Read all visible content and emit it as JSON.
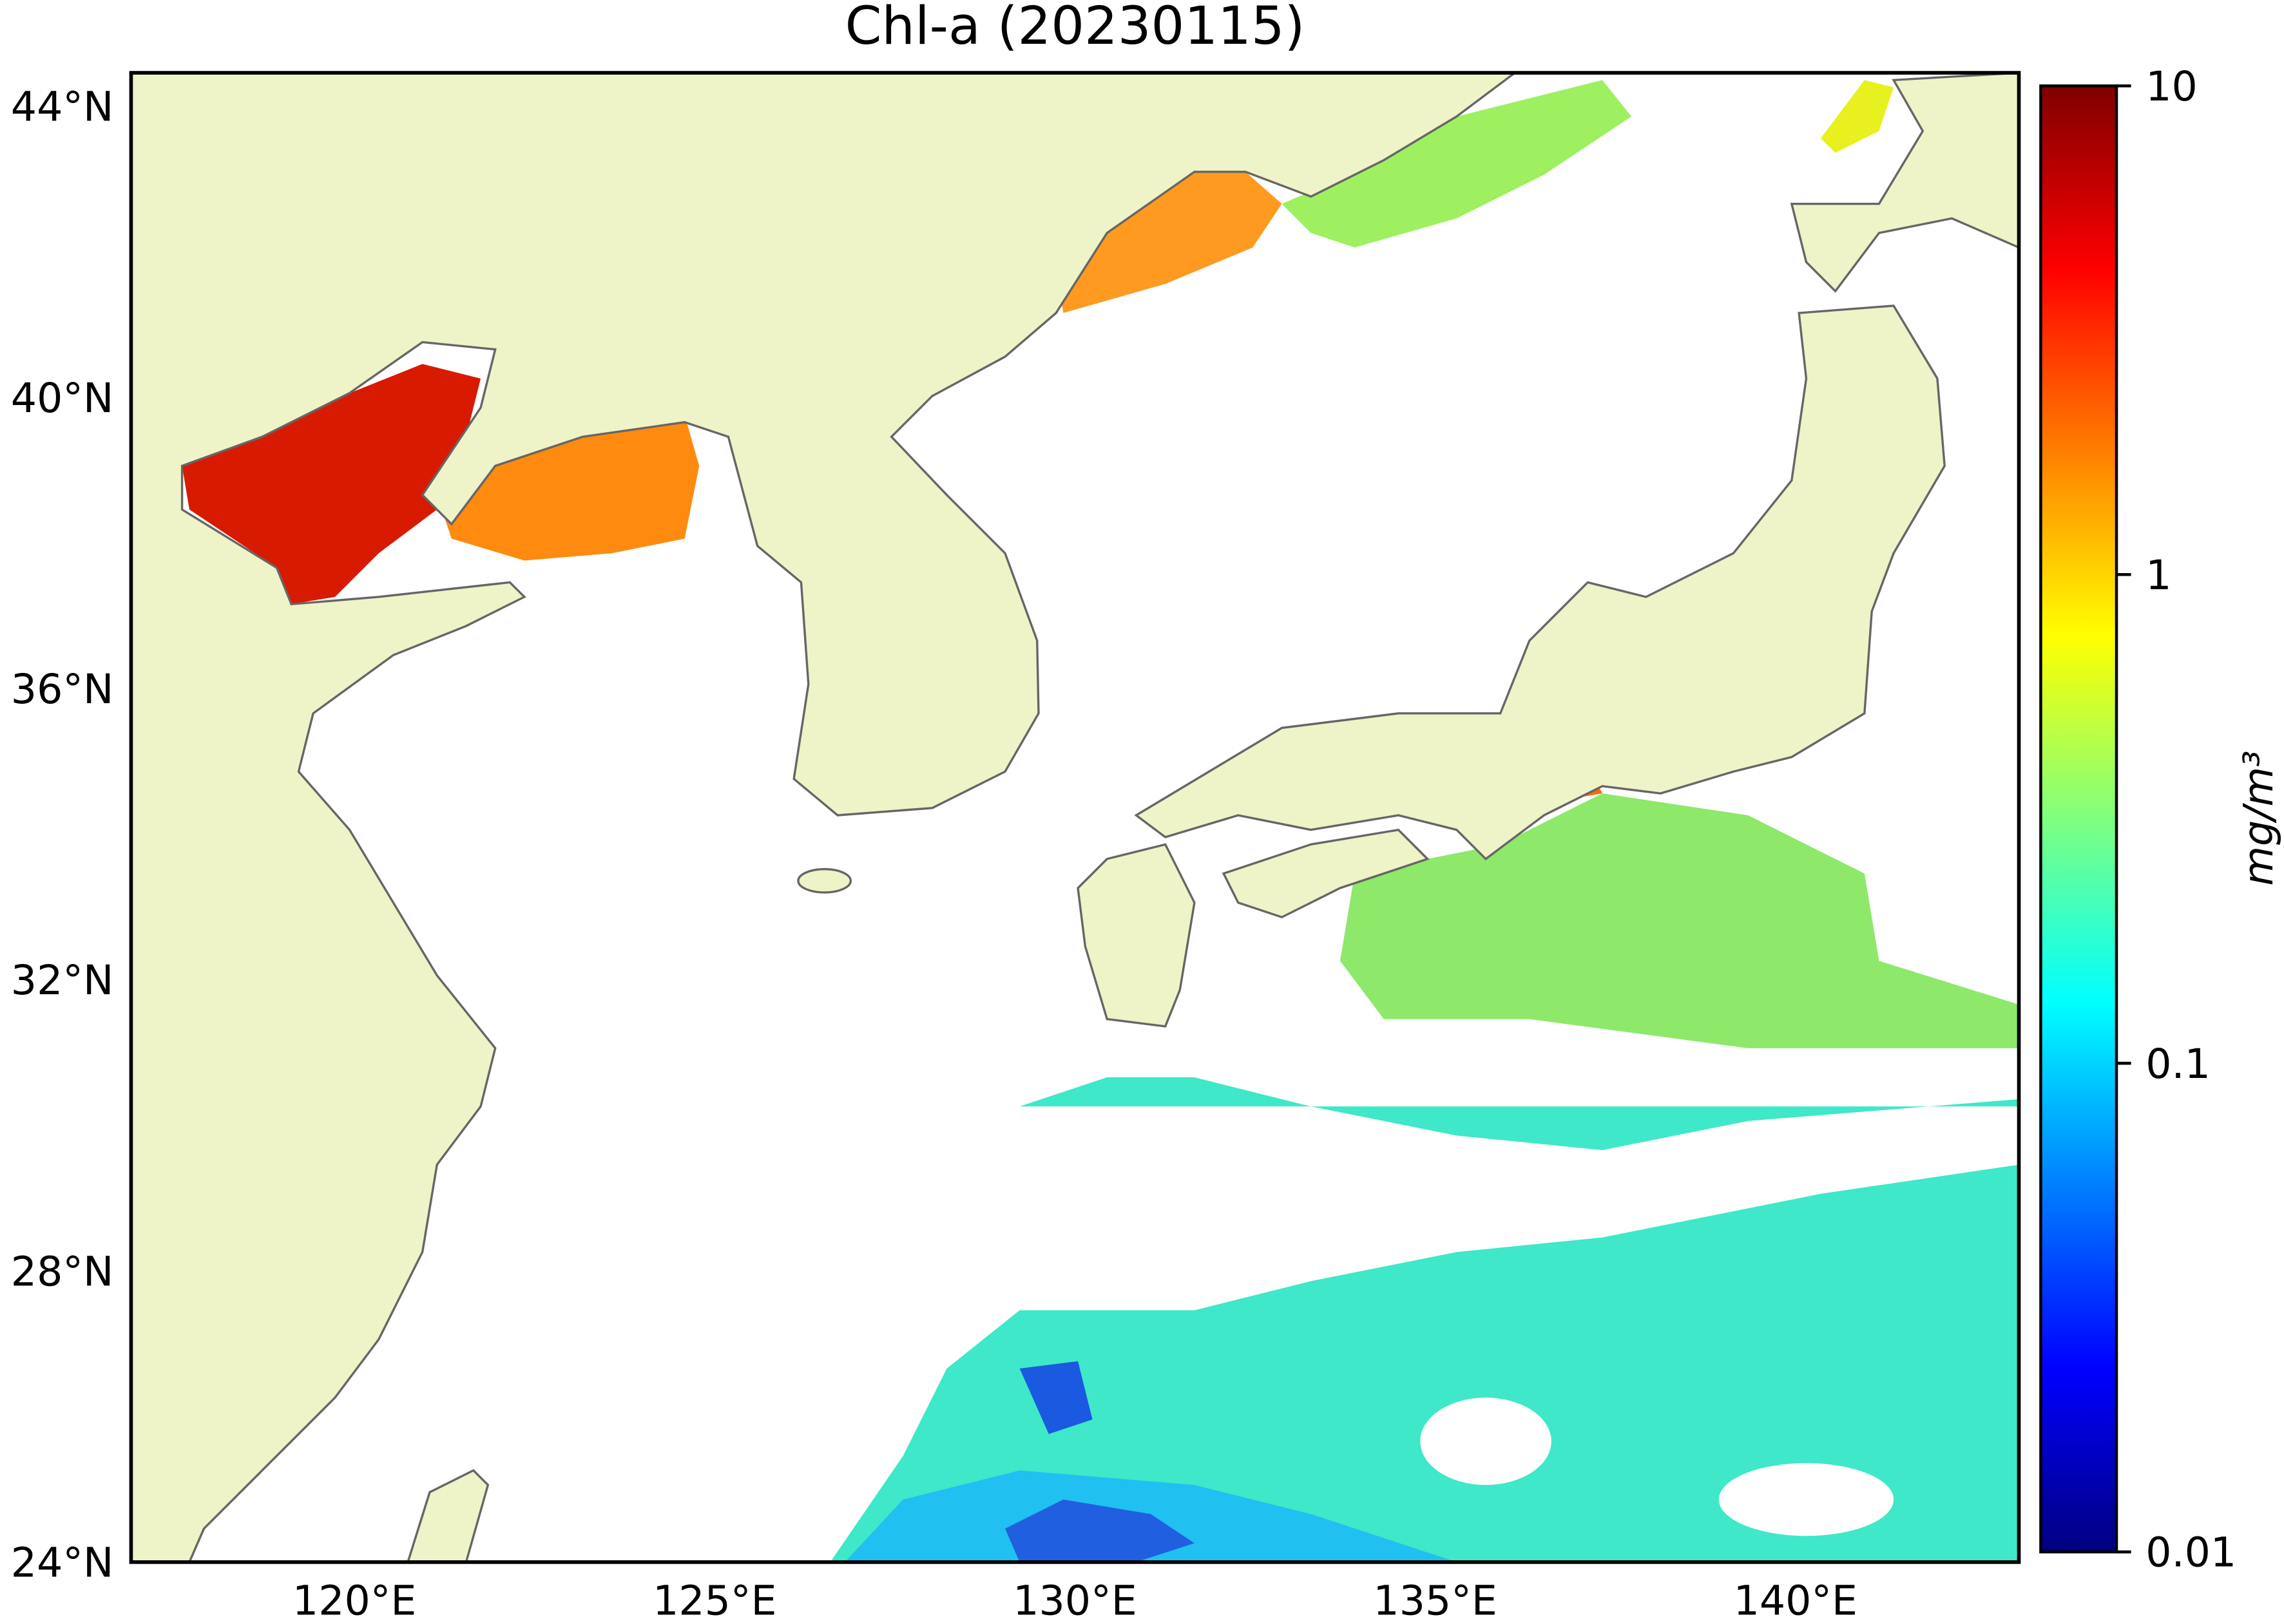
{
  "chart_data": {
    "type": "map",
    "title": "Chl-a (20230115)",
    "xlim": [
      116.9,
      143.1
    ],
    "ylim": [
      24,
      44.46
    ],
    "xticks": [
      {
        "value": 120,
        "label": "120°E"
      },
      {
        "value": 125,
        "label": "125°E"
      },
      {
        "value": 130,
        "label": "130°E"
      },
      {
        "value": 135,
        "label": "135°E"
      },
      {
        "value": 140,
        "label": "140°E"
      }
    ],
    "yticks": [
      {
        "value": 24,
        "label": "24°N"
      },
      {
        "value": 28,
        "label": "28°N"
      },
      {
        "value": 32,
        "label": "32°N"
      },
      {
        "value": 36,
        "label": "36°N"
      },
      {
        "value": 40,
        "label": "40°N"
      },
      {
        "value": 44,
        "label": "44°N"
      }
    ],
    "colorbar": {
      "label": "mg/m³",
      "log_scale": true,
      "lim": [
        0.01,
        10
      ],
      "ticks": [
        0.01,
        0.1,
        1,
        10
      ],
      "colors": [
        "#00007f",
        "#0000ff",
        "#007fff",
        "#00ffff",
        "#7fff7f",
        "#ffff00",
        "#ff7f00",
        "#ff0000",
        "#7f0000"
      ]
    }
  }
}
